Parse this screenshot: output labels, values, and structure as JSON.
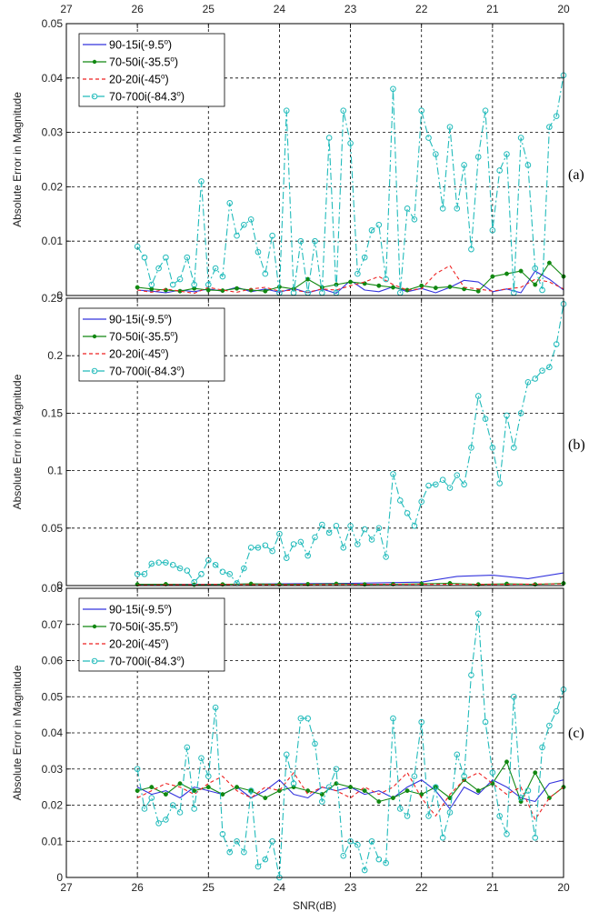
{
  "x_ticks": [
    "27",
    "26",
    "25",
    "24",
    "23",
    "22",
    "21",
    "20"
  ],
  "top_x_ticks": [
    "27",
    "26",
    "25",
    "24",
    "23",
    "22",
    "21",
    "20"
  ],
  "xlabel": "SNR(dB)",
  "legend": {
    "s1": {
      "base": "90-15i(-9.5",
      "sup": "o",
      "end": ")"
    },
    "s2": {
      "base": "70-50i(-35.5",
      "sup": "o",
      "end": ")"
    },
    "s3": {
      "base": "20-20i(-45",
      "sup": "o",
      "end": ")"
    },
    "s4": {
      "base": "70-700i(-84.3",
      "sup": "o",
      "end": ")"
    }
  },
  "colors": {
    "s1": "#3333dd",
    "s2": "#118811",
    "s3": "#ee2222",
    "s4": "#22bbbb"
  },
  "chart_data": [
    {
      "type": "line",
      "panel_label": "(a)",
      "ylabel": "Absolute Error in Magnitude",
      "xlim": [
        27,
        20
      ],
      "ylim": [
        0,
        0.05
      ],
      "y_ticks": [
        "0",
        "0.01",
        "0.02",
        "0.03",
        "0.04",
        "0.05"
      ],
      "grid": true,
      "legend_position": "top-left",
      "series": [
        {
          "name": "90-15i(-9.5o)",
          "x": [
            26,
            25.8,
            25.6,
            25.4,
            25.2,
            25,
            24.8,
            24.6,
            24.4,
            24.2,
            24,
            23.8,
            23.6,
            23.4,
            23.2,
            23,
            22.8,
            22.6,
            22.4,
            22.2,
            22,
            21.8,
            21.6,
            21.4,
            21.2,
            21,
            20.8,
            20.6,
            20.4,
            20.2,
            20
          ],
          "y": [
            0.001,
            0.0008,
            0.0005,
            0.001,
            0.0007,
            0.0012,
            0.0008,
            0.0015,
            0.0007,
            0.0012,
            0.0006,
            0.0013,
            0.0005,
            0.0012,
            0.0004,
            0.0028,
            0.001,
            0.0007,
            0.0016,
            0.0007,
            0.0013,
            0.0005,
            0.0015,
            0.0028,
            0.0025,
            0.0007,
            0.0012,
            0.0005,
            0.0045,
            0.003,
            0.001
          ]
        },
        {
          "name": "70-50i(-35.5o)",
          "x": [
            26,
            25.8,
            25.6,
            25.4,
            25.2,
            25,
            24.8,
            24.6,
            24.4,
            24.2,
            24,
            23.8,
            23.6,
            23.4,
            23.2,
            23,
            22.8,
            22.6,
            22.4,
            22.2,
            22,
            21.8,
            21.6,
            21.4,
            21.2,
            21,
            20.8,
            20.6,
            20.4,
            20.2,
            20
          ],
          "y": [
            0.0015,
            0.0012,
            0.001,
            0.0008,
            0.0013,
            0.001,
            0.0009,
            0.0013,
            0.001,
            0.0008,
            0.0016,
            0.0012,
            0.003,
            0.0015,
            0.002,
            0.0025,
            0.0022,
            0.0018,
            0.0015,
            0.001,
            0.0018,
            0.0014,
            0.0016,
            0.0012,
            0.0008,
            0.0035,
            0.004,
            0.0045,
            0.002,
            0.006,
            0.0035
          ]
        },
        {
          "name": "20-20i(-45o)",
          "x": [
            26,
            25.8,
            25.6,
            25.4,
            25.2,
            25,
            24.8,
            24.6,
            24.4,
            24.2,
            24,
            23.8,
            23.6,
            23.4,
            23.2,
            23,
            22.8,
            22.6,
            22.4,
            22.2,
            22,
            21.8,
            21.6,
            21.4,
            21.2,
            21,
            20.8,
            20.6,
            20.4,
            20.2,
            20
          ],
          "y": [
            0.001,
            0.0006,
            0.0012,
            0.0008,
            0.0004,
            0.0015,
            0.001,
            0.0006,
            0.0012,
            0.0015,
            0.0008,
            0.001,
            0.0006,
            0.0012,
            0.001,
            0.0018,
            0.0025,
            0.0035,
            0.002,
            0.001,
            0.0012,
            0.004,
            0.0055,
            0.0015,
            0.0012,
            0.0008,
            0.0012,
            0.0015,
            0.003,
            0.0025,
            0.0012
          ]
        },
        {
          "name": "70-700i(-84.3o)",
          "x": [
            26,
            25.9,
            25.8,
            25.7,
            25.6,
            25.5,
            25.4,
            25.3,
            25.2,
            25.1,
            25,
            24.9,
            24.8,
            24.7,
            24.6,
            24.5,
            24.4,
            24.3,
            24.2,
            24.1,
            24,
            23.9,
            23.8,
            23.7,
            23.6,
            23.5,
            23.4,
            23.3,
            23.2,
            23.1,
            23,
            22.9,
            22.8,
            22.7,
            22.6,
            22.5,
            22.4,
            22.3,
            22.2,
            22.1,
            22,
            21.9,
            21.8,
            21.7,
            21.6,
            21.5,
            21.4,
            21.3,
            21.2,
            21.1,
            21,
            20.9,
            20.8,
            20.7,
            20.6,
            20.5,
            20.4,
            20.3,
            20.2,
            20.1,
            20
          ],
          "y": [
            0.009,
            0.007,
            0.002,
            0.005,
            0.007,
            0.002,
            0.003,
            0.007,
            0.002,
            0.021,
            0.002,
            0.005,
            0.0035,
            0.017,
            0.011,
            0.013,
            0.014,
            0.008,
            0.004,
            0.011,
            0.0005,
            0.034,
            0.0005,
            0.01,
            0.0005,
            0.01,
            0.0005,
            0.029,
            0.0005,
            0.034,
            0.028,
            0.004,
            0.007,
            0.012,
            0.013,
            0.003,
            0.038,
            0.0005,
            0.016,
            0.014,
            0.034,
            0.029,
            0.026,
            0.016,
            0.031,
            0.016,
            0.024,
            0.0085,
            0.0255,
            0.034,
            0.012,
            0.023,
            0.026,
            0.0005,
            0.029,
            0.024,
            0.005,
            0.001,
            0.031,
            0.033,
            0.0405
          ]
        }
      ]
    },
    {
      "type": "line",
      "panel_label": "(b)",
      "ylabel": "Absolute Error in Magnitude",
      "xlim": [
        27,
        20
      ],
      "ylim": [
        0,
        0.25
      ],
      "y_ticks": [
        "0",
        "0.05",
        "0.1",
        "0.15",
        "0.2",
        "0.25"
      ],
      "grid": true,
      "legend_position": "top-left",
      "series": [
        {
          "name": "90-15i(-9.5o)",
          "x": [
            26,
            25,
            24,
            23,
            22,
            21.5,
            21,
            20.5,
            20
          ],
          "y": [
            0.001,
            0.001,
            0.0015,
            0.002,
            0.003,
            0.008,
            0.009,
            0.006,
            0.011
          ]
        },
        {
          "name": "70-50i(-35.5o)",
          "x": [
            26,
            25.6,
            25.2,
            24.8,
            24.4,
            24,
            23.6,
            23.2,
            22.8,
            22.4,
            22,
            21.6,
            21.2,
            20.8,
            20.4,
            20
          ],
          "y": [
            0.001,
            0.0012,
            0.0008,
            0.001,
            0.0015,
            0.001,
            0.0012,
            0.0015,
            0.001,
            0.0012,
            0.0015,
            0.002,
            0.001,
            0.0015,
            0.001,
            0.002
          ]
        },
        {
          "name": "20-20i(-45o)",
          "x": [
            26,
            25,
            24,
            23,
            22,
            21,
            20
          ],
          "y": [
            0.0005,
            0.001,
            0.0008,
            0.001,
            0.0012,
            0.001,
            0.0015
          ]
        },
        {
          "name": "70-700i(-84.3o)",
          "x": [
            26,
            25.9,
            25.8,
            25.7,
            25.6,
            25.5,
            25.4,
            25.3,
            25.2,
            25.1,
            25,
            24.9,
            24.8,
            24.7,
            24.6,
            24.5,
            24.4,
            24.3,
            24.2,
            24.1,
            24,
            23.9,
            23.8,
            23.7,
            23.6,
            23.5,
            23.4,
            23.3,
            23.2,
            23.1,
            23,
            22.9,
            22.8,
            22.7,
            22.6,
            22.5,
            22.4,
            22.3,
            22.2,
            22.1,
            22,
            21.9,
            21.8,
            21.7,
            21.6,
            21.5,
            21.4,
            21.3,
            21.2,
            21.1,
            21,
            20.9,
            20.8,
            20.7,
            20.6,
            20.5,
            20.4,
            20.3,
            20.2,
            20.1,
            20
          ],
          "y": [
            0.01,
            0.01,
            0.019,
            0.02,
            0.02,
            0.018,
            0.015,
            0.013,
            0.003,
            0.01,
            0.022,
            0.018,
            0.012,
            0.01,
            0.002,
            0.015,
            0.033,
            0.033,
            0.035,
            0.03,
            0.045,
            0.024,
            0.036,
            0.038,
            0.026,
            0.042,
            0.053,
            0.046,
            0.052,
            0.033,
            0.052,
            0.036,
            0.049,
            0.04,
            0.05,
            0.025,
            0.097,
            0.074,
            0.063,
            0.052,
            0.073,
            0.087,
            0.088,
            0.092,
            0.085,
            0.096,
            0.088,
            0.12,
            0.165,
            0.145,
            0.12,
            0.089,
            0.148,
            0.12,
            0.15,
            0.177,
            0.18,
            0.187,
            0.19,
            0.21,
            0.245
          ]
        }
      ]
    },
    {
      "type": "line",
      "panel_label": "(c)",
      "ylabel": "Absolute Error in Magnitude",
      "xlim": [
        27,
        20
      ],
      "ylim": [
        0,
        0.08
      ],
      "y_ticks": [
        "0",
        "0.01",
        "0.02",
        "0.03",
        "0.04",
        "0.05",
        "0.06",
        "0.07",
        "0.08"
      ],
      "grid": true,
      "legend_position": "top-left",
      "series": [
        {
          "name": "90-15i(-9.5o)",
          "x": [
            26,
            25.8,
            25.6,
            25.4,
            25.2,
            25,
            24.8,
            24.6,
            24.4,
            24.2,
            24,
            23.8,
            23.6,
            23.4,
            23.2,
            23,
            22.8,
            22.6,
            22.4,
            22.2,
            22,
            21.8,
            21.6,
            21.4,
            21.2,
            21,
            20.8,
            20.6,
            20.4,
            20.2,
            20
          ],
          "y": [
            0.025,
            0.023,
            0.024,
            0.022,
            0.025,
            0.024,
            0.023,
            0.025,
            0.022,
            0.024,
            0.027,
            0.023,
            0.022,
            0.025,
            0.024,
            0.025,
            0.023,
            0.024,
            0.022,
            0.025,
            0.027,
            0.024,
            0.019,
            0.025,
            0.023,
            0.027,
            0.025,
            0.022,
            0.021,
            0.026,
            0.027
          ]
        },
        {
          "name": "70-50i(-35.5o)",
          "x": [
            26,
            25.8,
            25.6,
            25.4,
            25.2,
            25,
            24.8,
            24.6,
            24.4,
            24.2,
            24,
            23.8,
            23.6,
            23.4,
            23.2,
            23,
            22.8,
            22.6,
            22.4,
            22.2,
            22,
            21.8,
            21.6,
            21.4,
            21.2,
            21,
            20.8,
            20.6,
            20.4,
            20.2,
            20
          ],
          "y": [
            0.024,
            0.025,
            0.023,
            0.026,
            0.024,
            0.025,
            0.023,
            0.025,
            0.024,
            0.022,
            0.024,
            0.025,
            0.024,
            0.023,
            0.026,
            0.025,
            0.024,
            0.021,
            0.022,
            0.024,
            0.023,
            0.025,
            0.022,
            0.027,
            0.024,
            0.026,
            0.032,
            0.021,
            0.029,
            0.022,
            0.025
          ]
        },
        {
          "name": "20-20i(-45o)",
          "x": [
            26,
            25.8,
            25.6,
            25.4,
            25.2,
            25,
            24.8,
            24.6,
            24.4,
            24.2,
            24,
            23.8,
            23.6,
            23.4,
            23.2,
            23,
            22.8,
            22.6,
            22.4,
            22.2,
            22,
            21.8,
            21.6,
            21.4,
            21.2,
            21,
            20.8,
            20.6,
            20.4,
            20.2,
            20
          ],
          "y": [
            0.022,
            0.024,
            0.026,
            0.025,
            0.023,
            0.026,
            0.028,
            0.024,
            0.022,
            0.025,
            0.024,
            0.029,
            0.023,
            0.025,
            0.024,
            0.022,
            0.025,
            0.023,
            0.025,
            0.029,
            0.022,
            0.017,
            0.023,
            0.027,
            0.029,
            0.026,
            0.023,
            0.025,
            0.016,
            0.022,
            0.025
          ]
        },
        {
          "name": "70-700i(-84.3o)",
          "x": [
            26,
            25.9,
            25.8,
            25.7,
            25.6,
            25.5,
            25.4,
            25.3,
            25.2,
            25.1,
            25,
            24.9,
            24.8,
            24.7,
            24.6,
            24.5,
            24.4,
            24.3,
            24.2,
            24.1,
            24,
            23.9,
            23.8,
            23.7,
            23.6,
            23.5,
            23.4,
            23.3,
            23.2,
            23.1,
            23,
            22.9,
            22.8,
            22.7,
            22.6,
            22.5,
            22.4,
            22.3,
            22.2,
            22.1,
            22,
            21.9,
            21.8,
            21.7,
            21.6,
            21.5,
            21.4,
            21.3,
            21.2,
            21.1,
            21,
            20.9,
            20.8,
            20.7,
            20.6,
            20.5,
            20.4,
            20.3,
            20.2,
            20.1,
            20
          ],
          "y": [
            0.03,
            0.019,
            0.022,
            0.015,
            0.016,
            0.02,
            0.018,
            0.036,
            0.019,
            0.033,
            0.028,
            0.047,
            0.012,
            0.007,
            0.01,
            0.007,
            0.024,
            0.003,
            0.005,
            0.01,
            0,
            0.034,
            0.026,
            0.044,
            0.044,
            0.037,
            0.021,
            0.025,
            0.03,
            0.006,
            0.01,
            0.009,
            0.002,
            0.01,
            0.005,
            0.004,
            0.044,
            0.019,
            0.017,
            0.028,
            0.043,
            0.017,
            0.025,
            0.011,
            0.018,
            0.034,
            0.028,
            0.056,
            0.073,
            0.043,
            0.029,
            0.017,
            0.012,
            0.05,
            0.022,
            0.024,
            0.011,
            0.036,
            0.042,
            0.046,
            0.052
          ]
        }
      ]
    }
  ]
}
